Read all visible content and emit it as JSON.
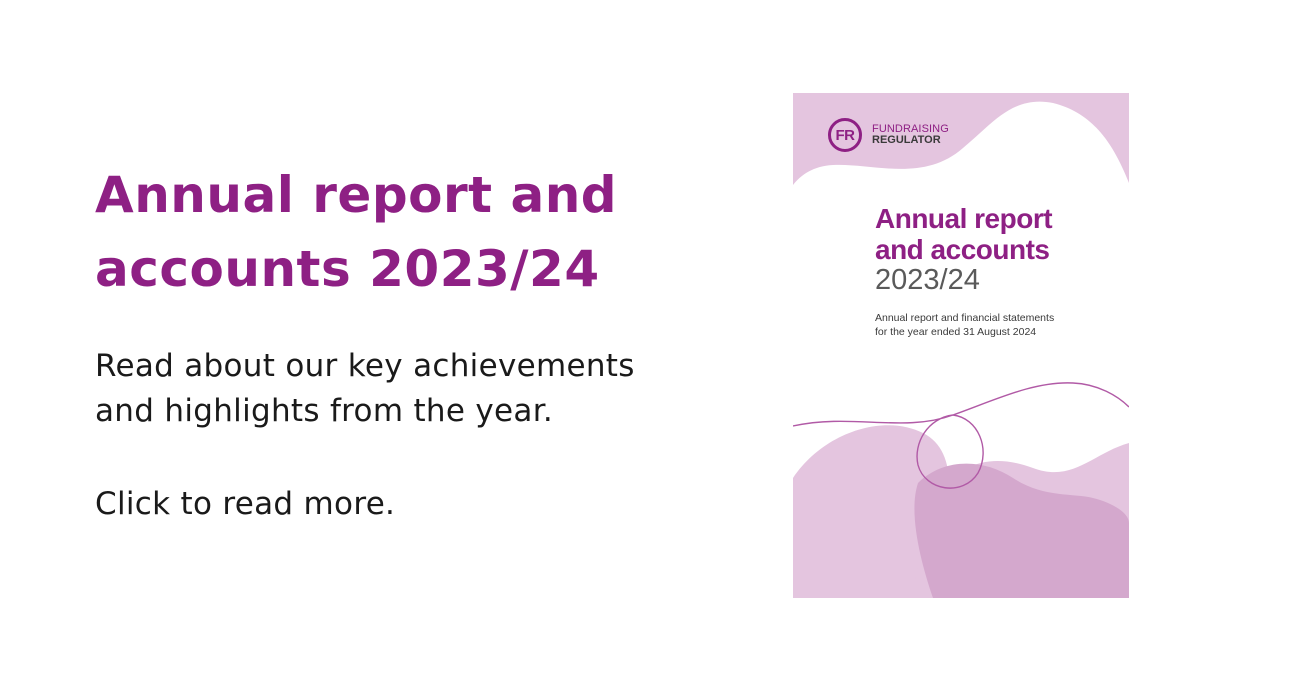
{
  "promo": {
    "headline_line1": "Annual report and",
    "headline_line2": "accounts 2023/24",
    "body_line1": "Read about our key achievements",
    "body_line2": "and highlights from the year.",
    "cta": "Click to read more."
  },
  "cover": {
    "logo_mark": "FR",
    "logo_line1": "FUNDRAISING",
    "logo_line2": "REGULATOR",
    "title_line1": "Annual report",
    "title_line2": "and accounts",
    "title_line3": "2023/24",
    "subtitle_line1": "Annual report and financial statements",
    "subtitle_line2": "for the year ended 31 August 2024"
  },
  "colors": {
    "brand_purple": "#8e2084",
    "light_lilac": "#e4c5df",
    "mid_lilac": "#d4a8cd",
    "text_dark": "#1a1a1a"
  }
}
